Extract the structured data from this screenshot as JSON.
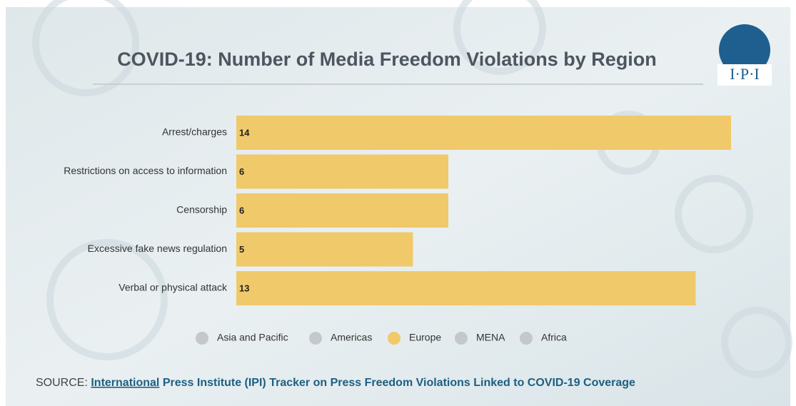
{
  "chart_data": {
    "type": "bar",
    "orientation": "horizontal",
    "title": "COVID-19: Number of Media Freedom Violations by Region",
    "categories": [
      "Arrest/charges",
      "Restrictions on access to information",
      "Censorship",
      "Excessive fake news regulation",
      "Verbal or physical attack"
    ],
    "series": [
      {
        "name": "Asia and Pacific",
        "color": "#c4c8cb",
        "visible": false
      },
      {
        "name": "Americas",
        "color": "#c4c8cb",
        "visible": false
      },
      {
        "name": "Europe",
        "color": "#f0c96a",
        "visible": true,
        "values": [
          14,
          6,
          6,
          5,
          13
        ]
      },
      {
        "name": "MENA",
        "color": "#c4c8cb",
        "visible": false
      },
      {
        "name": "Africa",
        "color": "#c4c8cb",
        "visible": false
      }
    ],
    "xlim": [
      0,
      14
    ]
  },
  "source": {
    "prefix": "SOURCE:",
    "link": "International",
    "rest": "Press Institute (IPI) Tracker on Press Freedom Violations Linked to COVID-19 Coverage"
  },
  "logo": "I·P·I"
}
